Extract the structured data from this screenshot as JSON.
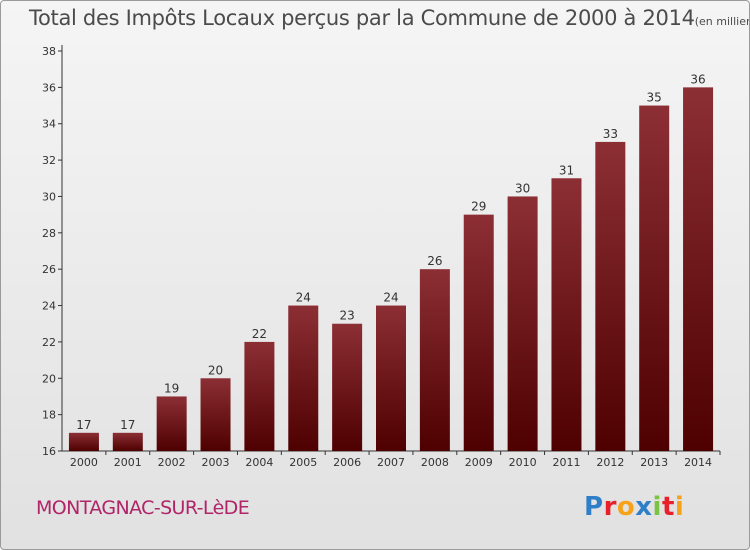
{
  "header": {
    "title": "Total des Impôts Locaux perçus par la Commune de 2000 à 2014",
    "unit": "(en milliers d'€)"
  },
  "footer": {
    "commune": "MONTAGNAC-SUR-LèDE",
    "brand": "Proxiti",
    "brand_colors": [
      "#2e7fc8",
      "#e8202a",
      "#f7a21b",
      "#2e7fc8",
      "#7cc243",
      "#e8202a",
      "#f7a21b"
    ]
  },
  "chart_data": {
    "type": "bar",
    "title": "Total des Impôts Locaux perçus par la Commune de 2000 à 2014",
    "xlabel": "",
    "ylabel": "",
    "categories": [
      "2000",
      "2001",
      "2002",
      "2003",
      "2004",
      "2005",
      "2006",
      "2007",
      "2008",
      "2009",
      "2010",
      "2011",
      "2012",
      "2013",
      "2014"
    ],
    "values": [
      17,
      17,
      19,
      20,
      22,
      24,
      23,
      24,
      26,
      29,
      30,
      31,
      33,
      35,
      36
    ],
    "ylim": [
      16,
      38
    ],
    "yticks": [
      16,
      18,
      20,
      22,
      24,
      26,
      28,
      30,
      32,
      34,
      36,
      38
    ],
    "grid": false,
    "bar_color_top": "#8c2f35",
    "bar_color_bottom": "#4e0000"
  }
}
